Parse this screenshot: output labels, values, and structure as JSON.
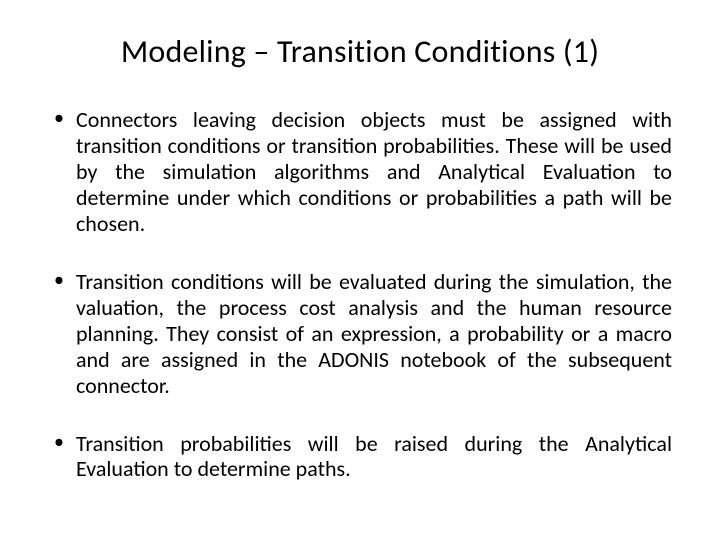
{
  "slide": {
    "title": "Modeling – Transition Conditions (1)",
    "bullets": [
      "Connectors leaving decision objects must be assigned with transition conditions or transition probabilities. These will be used by the simulation algorithms and Analytical Evaluation to determine under which conditions or probabilities a path will be chosen.",
      "Transition conditions will be evaluated during the simulation, the valuation, the process cost analysis and the human resource planning. They consist of an expression, a probability or a macro and are assigned in the ADONIS notebook of the subsequent connector.",
      "Transition probabilities will be raised during the Analytical Evaluation to determine paths."
    ]
  },
  "style": {
    "background_color": "#ffffff",
    "text_color": "#000000",
    "title_fontsize": 32,
    "body_fontsize": 22,
    "font_family": "Calibri"
  }
}
